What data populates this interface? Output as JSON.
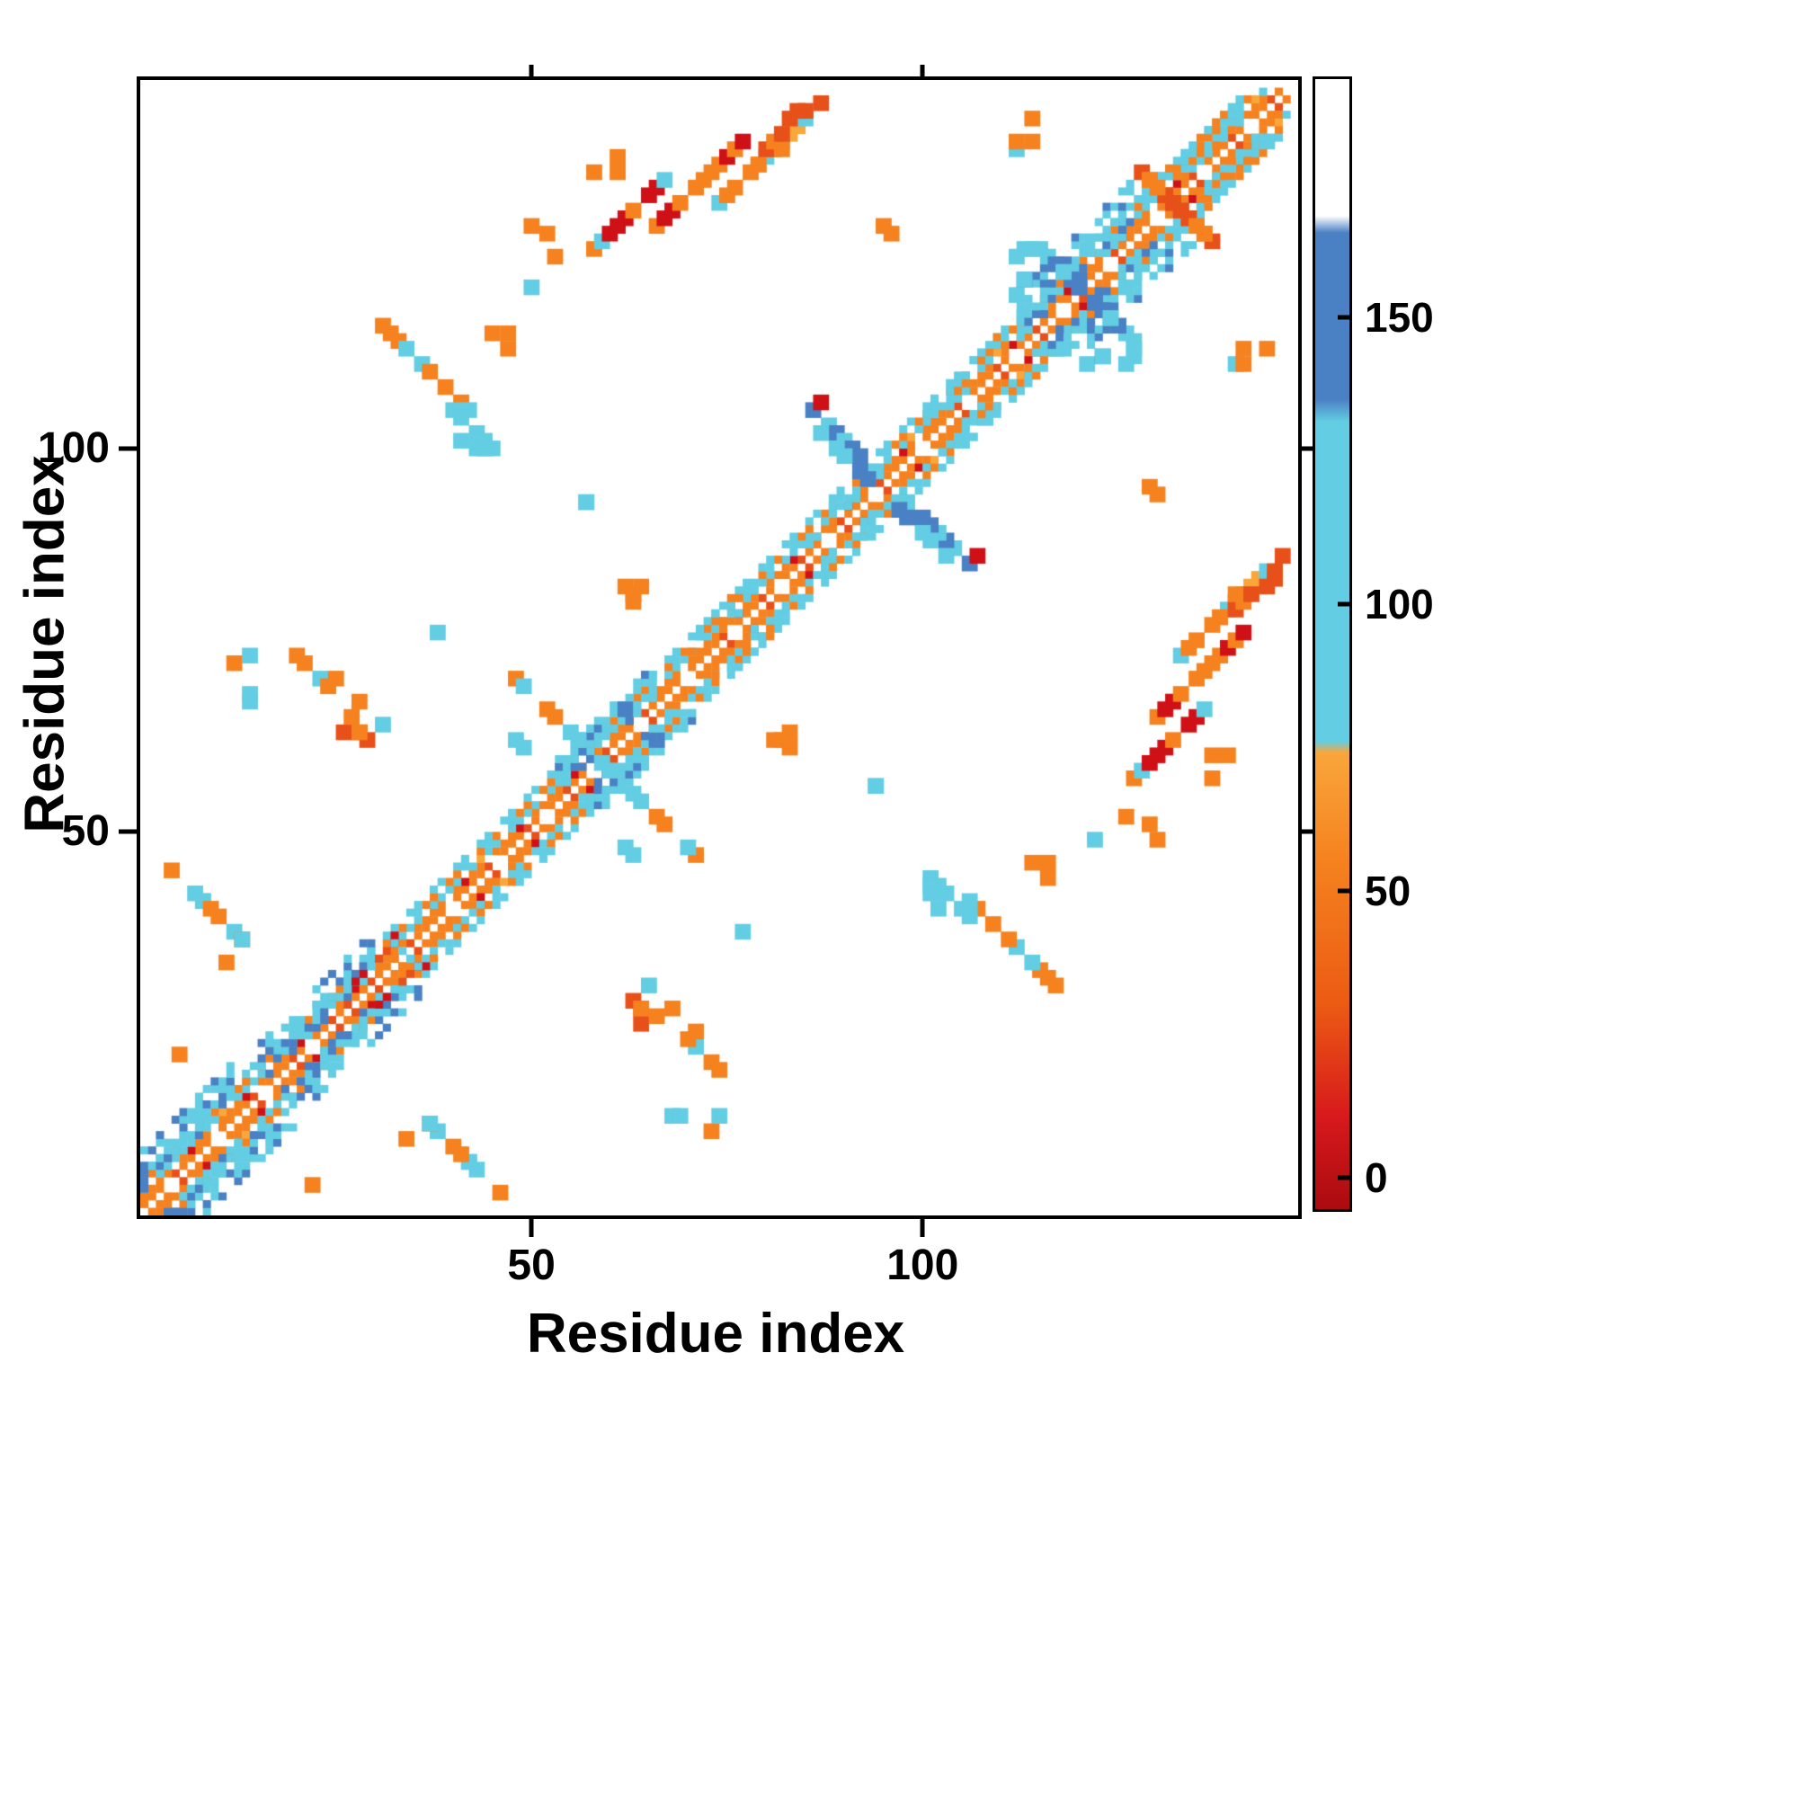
{
  "chart_data": {
    "type": "heatmap",
    "title": "",
    "xlabel": "Residue index",
    "ylabel": "Residue index",
    "n_residues": 147,
    "axis_range": [
      1,
      147
    ],
    "x_ticks": [
      50,
      100
    ],
    "y_ticks": [
      50,
      100
    ],
    "grid": false,
    "legend_position": "right-colorbar",
    "palette": {
      "red": "#cf1117",
      "redorange": "#e8501a",
      "orange": "#f5821f",
      "amber": "#f9a63a",
      "cyan": "#62cde3",
      "blue": "#4a80c4"
    },
    "colorbar": {
      "ticks": [
        0,
        50,
        100,
        150
      ],
      "vmin": -6,
      "vmax": 192,
      "stops": [
        {
          "v": -6,
          "c": "#ab0b10"
        },
        {
          "v": 10,
          "c": "#d7191c"
        },
        {
          "v": 30,
          "c": "#ec5b13"
        },
        {
          "v": 55,
          "c": "#f5821f"
        },
        {
          "v": 74,
          "c": "#f9a63a"
        },
        {
          "v": 76,
          "c": "#62cde3"
        },
        {
          "v": 132,
          "c": "#62cde3"
        },
        {
          "v": 136,
          "c": "#4a80c4"
        },
        {
          "v": 165,
          "c": "#4a80c4"
        },
        {
          "v": 168,
          "c": "#ffffff"
        },
        {
          "v": 192,
          "c": "#ffffff"
        }
      ]
    },
    "band": {
      "stripes": [
        {
          "offset": 1,
          "color": "orange",
          "gap_mod": 6,
          "gap_phase": 2,
          "alt_color": "redorange",
          "alt_every": 5
        },
        {
          "offset": 2,
          "color": "orange",
          "gap_mod": 5,
          "gap_phase": 0,
          "alt_color": "red",
          "alt_every": 7
        },
        {
          "offset": 3,
          "color": "cyan",
          "gap_mod": 5,
          "gap_phase": 3,
          "alt_color": "amber",
          "alt_every": 11
        },
        {
          "offset": 4,
          "color": "orange",
          "gap_mod": 4,
          "gap_phase": 1,
          "alt_color": "cyan",
          "alt_every": 3
        },
        {
          "offset": 5,
          "color": "cyan",
          "gap_mod": 3,
          "gap_phase": 2,
          "alt_color": "cyan",
          "alt_every": 2
        }
      ]
    },
    "patches": [
      {
        "i0": 1,
        "i1": 12,
        "omin": 3,
        "omax": 8,
        "density": 0.7,
        "colors": [
          "cyan",
          "blue",
          "cyan"
        ]
      },
      {
        "i0": 16,
        "i1": 30,
        "omin": 2,
        "omax": 7,
        "density": 0.55,
        "colors": [
          "cyan",
          "blue",
          "cyan",
          "blue"
        ]
      },
      {
        "i0": 27,
        "i1": 34,
        "omin": 1,
        "omax": 3,
        "density": 0.45,
        "colors": [
          "red",
          "orange",
          "redorange"
        ]
      },
      {
        "i0": 54,
        "i1": 66,
        "omin": 2,
        "omax": 6,
        "density": 0.6,
        "colors": [
          "cyan",
          "cyan",
          "blue"
        ]
      },
      {
        "i0": 71,
        "i1": 79,
        "omin": 2,
        "omax": 5,
        "density": 0.5,
        "colors": [
          "cyan",
          "orange"
        ]
      },
      {
        "i0": 84,
        "i1": 92,
        "omin": 2,
        "omax": 4,
        "density": 0.5,
        "colors": [
          "cyan"
        ]
      },
      {
        "i0": 100,
        "i1": 111,
        "omin": 2,
        "omax": 5,
        "density": 0.5,
        "colors": [
          "cyan",
          "cyan",
          "orange"
        ]
      },
      {
        "i0": 113,
        "i1": 127,
        "omin": 2,
        "omax": 8,
        "density": 0.55,
        "colors": [
          "cyan",
          "cyan",
          "blue"
        ]
      },
      {
        "i0": 131,
        "i1": 141,
        "omin": 2,
        "omax": 5,
        "density": 0.5,
        "colors": [
          "cyan",
          "orange"
        ]
      }
    ],
    "clusters": [
      {
        "i": 58,
        "j": 127,
        "n": 10,
        "dir": "d",
        "spread": 1,
        "density": 0.8,
        "size": 2,
        "colors": [
          "orange",
          "orange",
          "cyan",
          "red"
        ]
      },
      {
        "i": 66,
        "j": 130,
        "n": 12,
        "dir": "d",
        "spread": 1,
        "density": 0.85,
        "size": 2,
        "colors": [
          "orange",
          "red",
          "orange"
        ]
      },
      {
        "i": 74,
        "j": 133,
        "n": 12,
        "dir": "d",
        "spread": 1,
        "density": 0.85,
        "size": 2,
        "colors": [
          "orange",
          "amber",
          "orange",
          "cyan"
        ]
      },
      {
        "i": 79,
        "j": 138,
        "n": 9,
        "dir": "d",
        "spread": 2,
        "density": 0.9,
        "size": 2,
        "colors": [
          "orange",
          "redorange",
          "orange"
        ]
      },
      {
        "i": 50,
        "j": 126,
        "n": 8,
        "dir": "blob",
        "spread": 4,
        "density": 0.6,
        "size": 2,
        "colors": [
          "orange",
          "cyan",
          "orange"
        ]
      },
      {
        "i": 59,
        "j": 139,
        "n": 3,
        "dir": "blob",
        "spread": 2,
        "density": 0.8,
        "size": 2,
        "colors": [
          "orange"
        ]
      },
      {
        "i": 86,
        "j": 106,
        "n": 9,
        "dir": "ad",
        "spread": 1,
        "density": 0.9,
        "size": 2,
        "colors": [
          "blue",
          "blue",
          "cyan"
        ]
      },
      {
        "i": 87,
        "j": 103,
        "n": 7,
        "dir": "ad",
        "spread": 1,
        "density": 0.8,
        "size": 2,
        "colors": [
          "blue",
          "cyan"
        ]
      },
      {
        "i": 87,
        "j": 107,
        "n": 1,
        "dir": "blob",
        "spread": 0,
        "density": 1,
        "size": 2,
        "colors": [
          "red"
        ]
      },
      {
        "i": 115,
        "j": 127,
        "n": 10,
        "dir": "ad",
        "spread": 1,
        "density": 0.85,
        "size": 2,
        "colors": [
          "cyan",
          "cyan",
          "blue"
        ]
      },
      {
        "i": 113,
        "j": 124,
        "n": 10,
        "dir": "blob",
        "spread": 3,
        "density": 0.7,
        "size": 2,
        "colors": [
          "cyan",
          "blue",
          "cyan"
        ]
      },
      {
        "i": 128,
        "j": 137,
        "n": 9,
        "dir": "ad",
        "spread": 1,
        "density": 0.9,
        "size": 2,
        "colors": [
          "orange",
          "redorange",
          "orange"
        ]
      },
      {
        "i": 48,
        "j": 71,
        "n": 12,
        "dir": "ad",
        "spread": 1,
        "density": 0.65,
        "size": 2,
        "colors": [
          "cyan",
          "orange",
          "red",
          "cyan"
        ]
      },
      {
        "i": 44,
        "j": 67,
        "n": 6,
        "dir": "ad",
        "spread": 1,
        "density": 0.5,
        "size": 2,
        "colors": [
          "orange",
          "cyan"
        ]
      },
      {
        "i": 19,
        "j": 75,
        "n": 6,
        "dir": "ad",
        "spread": 1,
        "density": 0.7,
        "size": 2,
        "colors": [
          "cyan",
          "orange"
        ]
      },
      {
        "i": 24,
        "j": 72,
        "n": 8,
        "dir": "ad",
        "spread": 1,
        "density": 0.7,
        "size": 2,
        "colors": [
          "orange",
          "cyan",
          "orange"
        ]
      },
      {
        "i": 27,
        "j": 64,
        "n": 5,
        "dir": "blob",
        "spread": 2,
        "density": 0.8,
        "size": 2,
        "colors": [
          "orange",
          "redorange"
        ]
      },
      {
        "i": 12,
        "j": 71,
        "n": 5,
        "dir": "blob",
        "spread": 3,
        "density": 0.6,
        "size": 2,
        "colors": [
          "cyan",
          "orange"
        ]
      },
      {
        "i": 31,
        "j": 117,
        "n": 6,
        "dir": "ad",
        "spread": 1,
        "density": 0.6,
        "size": 2,
        "colors": [
          "cyan",
          "orange"
        ]
      },
      {
        "i": 36,
        "j": 112,
        "n": 8,
        "dir": "ad",
        "spread": 1,
        "density": 0.6,
        "size": 2,
        "colors": [
          "cyan",
          "cyan",
          "orange"
        ]
      },
      {
        "i": 40,
        "j": 106,
        "n": 6,
        "dir": "ad",
        "spread": 1,
        "density": 0.6,
        "size": 2,
        "colors": [
          "cyan"
        ]
      },
      {
        "i": 43,
        "j": 101,
        "n": 5,
        "dir": "blob",
        "spread": 2,
        "density": 0.7,
        "size": 2,
        "colors": [
          "cyan"
        ]
      },
      {
        "i": 36,
        "j": 77,
        "n": 5,
        "dir": "ad",
        "spread": 2,
        "density": 0.5,
        "size": 2,
        "colors": [
          "orange",
          "cyan"
        ]
      },
      {
        "i": 4,
        "j": 46,
        "n": 5,
        "dir": "ad",
        "spread": 1,
        "density": 0.6,
        "size": 2,
        "colors": [
          "orange",
          "cyan"
        ]
      },
      {
        "i": 8,
        "j": 42,
        "n": 6,
        "dir": "ad",
        "spread": 1,
        "density": 0.6,
        "size": 2,
        "colors": [
          "cyan",
          "orange"
        ]
      },
      {
        "i": 12,
        "j": 36,
        "n": 4,
        "dir": "blob",
        "spread": 2,
        "density": 0.7,
        "size": 2,
        "colors": [
          "orange",
          "cyan"
        ]
      },
      {
        "i": 4,
        "j": 22,
        "n": 5,
        "dir": "blob",
        "spread": 3,
        "density": 0.6,
        "size": 2,
        "colors": [
          "orange"
        ]
      },
      {
        "i": 110,
        "j": 138,
        "n": 8,
        "dir": "d",
        "spread": 2,
        "density": 0.5,
        "size": 2,
        "colors": [
          "orange",
          "cyan"
        ]
      },
      {
        "i": 63,
        "j": 82,
        "n": 4,
        "dir": "blob",
        "spread": 1,
        "density": 0.9,
        "size": 2,
        "colors": [
          "orange",
          "redorange"
        ]
      },
      {
        "i": 57,
        "j": 93,
        "n": 2,
        "dir": "blob",
        "spread": 1,
        "density": 1,
        "size": 2,
        "colors": [
          "cyan"
        ]
      },
      {
        "i": 46,
        "j": 115,
        "n": 3,
        "dir": "blob",
        "spread": 2,
        "density": 0.8,
        "size": 2,
        "colors": [
          "orange"
        ]
      },
      {
        "i": 95,
        "j": 130,
        "n": 2,
        "dir": "blob",
        "spread": 1,
        "density": 1,
        "size": 2,
        "colors": [
          "orange"
        ]
      },
      {
        "i": 33,
        "j": 36,
        "n": 3,
        "dir": "blob",
        "spread": 1,
        "density": 1,
        "size": 1,
        "colors": [
          "red",
          "cyan",
          "cyan"
        ]
      }
    ]
  }
}
